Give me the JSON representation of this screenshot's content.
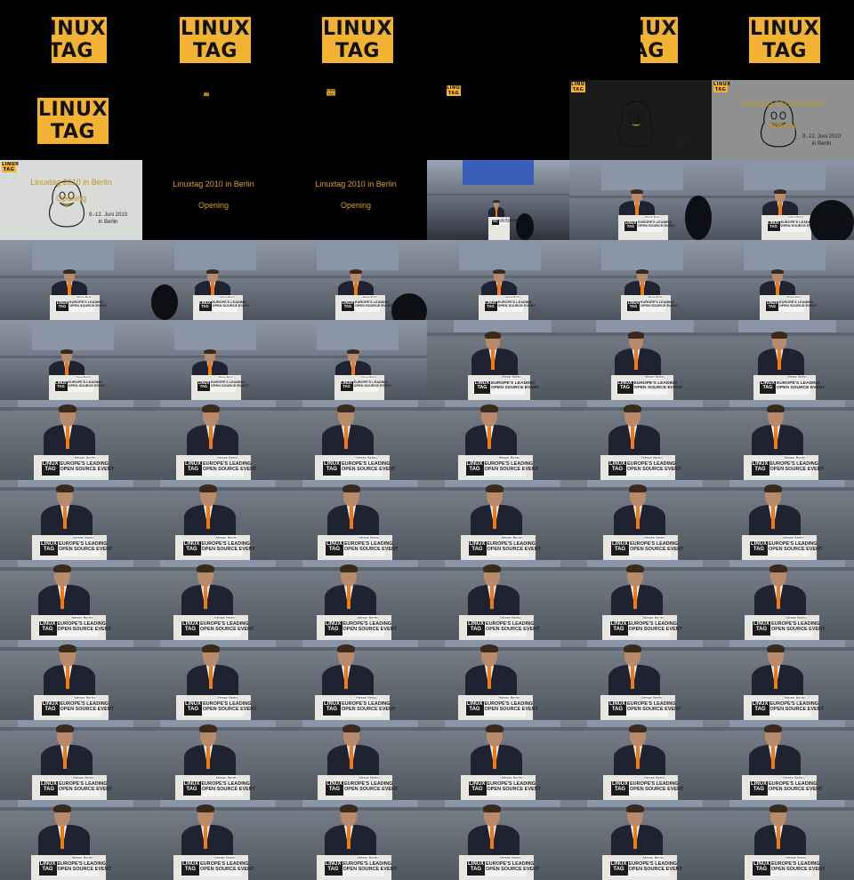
{
  "sheet": {
    "columns": 6,
    "rows": 11,
    "frame_count": 66
  },
  "logo": {
    "line1": "LINUX",
    "line2": "TAG",
    "color": "#f2b233"
  },
  "title_card": {
    "title": "Linuxtag 2010 in Berlin",
    "subtitle": "Opening",
    "date_line1": "9.-12. Juni 2010",
    "date_line2": "in Berlin"
  },
  "podium_sign": {
    "logo_line1": "LINUX",
    "logo_line2": "TAG",
    "event_line1": "EUROPE'S LEADING",
    "event_line2": "OPEN SOURCE EVENT",
    "sponsor": "Messe Berlin"
  },
  "colors": {
    "tie": "#f07a14",
    "accent": "#d9a21d",
    "background": "#000000"
  }
}
